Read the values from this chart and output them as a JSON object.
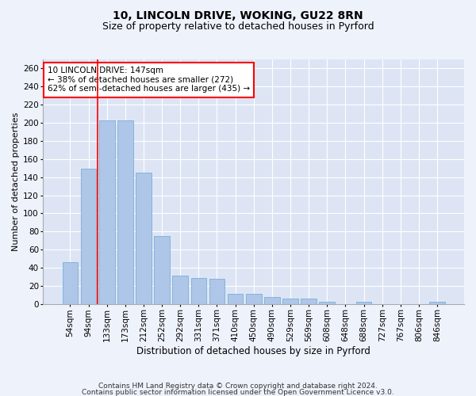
{
  "title1": "10, LINCOLN DRIVE, WOKING, GU22 8RN",
  "title2": "Size of property relative to detached houses in Pyrford",
  "xlabel": "Distribution of detached houses by size in Pyrford",
  "ylabel": "Number of detached properties",
  "categories": [
    "54sqm",
    "94sqm",
    "133sqm",
    "173sqm",
    "212sqm",
    "252sqm",
    "292sqm",
    "331sqm",
    "371sqm",
    "410sqm",
    "450sqm",
    "490sqm",
    "529sqm",
    "569sqm",
    "608sqm",
    "648sqm",
    "688sqm",
    "727sqm",
    "767sqm",
    "806sqm",
    "846sqm"
  ],
  "values": [
    46,
    149,
    203,
    203,
    145,
    75,
    31,
    29,
    28,
    11,
    11,
    8,
    6,
    6,
    2,
    0,
    2,
    0,
    0,
    0,
    2
  ],
  "bar_color": "#aec6e8",
  "bar_edge_color": "#7aafd4",
  "vline_x_index": 2,
  "vline_color": "red",
  "annotation_text": "10 LINCOLN DRIVE: 147sqm\n← 38% of detached houses are smaller (272)\n62% of semi-detached houses are larger (435) →",
  "annotation_box_color": "white",
  "annotation_box_edge": "red",
  "ylim": [
    0,
    270
  ],
  "yticks": [
    0,
    20,
    40,
    60,
    80,
    100,
    120,
    140,
    160,
    180,
    200,
    220,
    240,
    260
  ],
  "footer1": "Contains HM Land Registry data © Crown copyright and database right 2024.",
  "footer2": "Contains public sector information licensed under the Open Government Licence v3.0.",
  "background_color": "#eef2fb",
  "plot_bg_color": "#dde5f5",
  "grid_color": "white",
  "title1_fontsize": 10,
  "title2_fontsize": 9,
  "xlabel_fontsize": 8.5,
  "ylabel_fontsize": 8,
  "tick_fontsize": 7.5,
  "annotation_fontsize": 7.5,
  "footer_fontsize": 6.5
}
